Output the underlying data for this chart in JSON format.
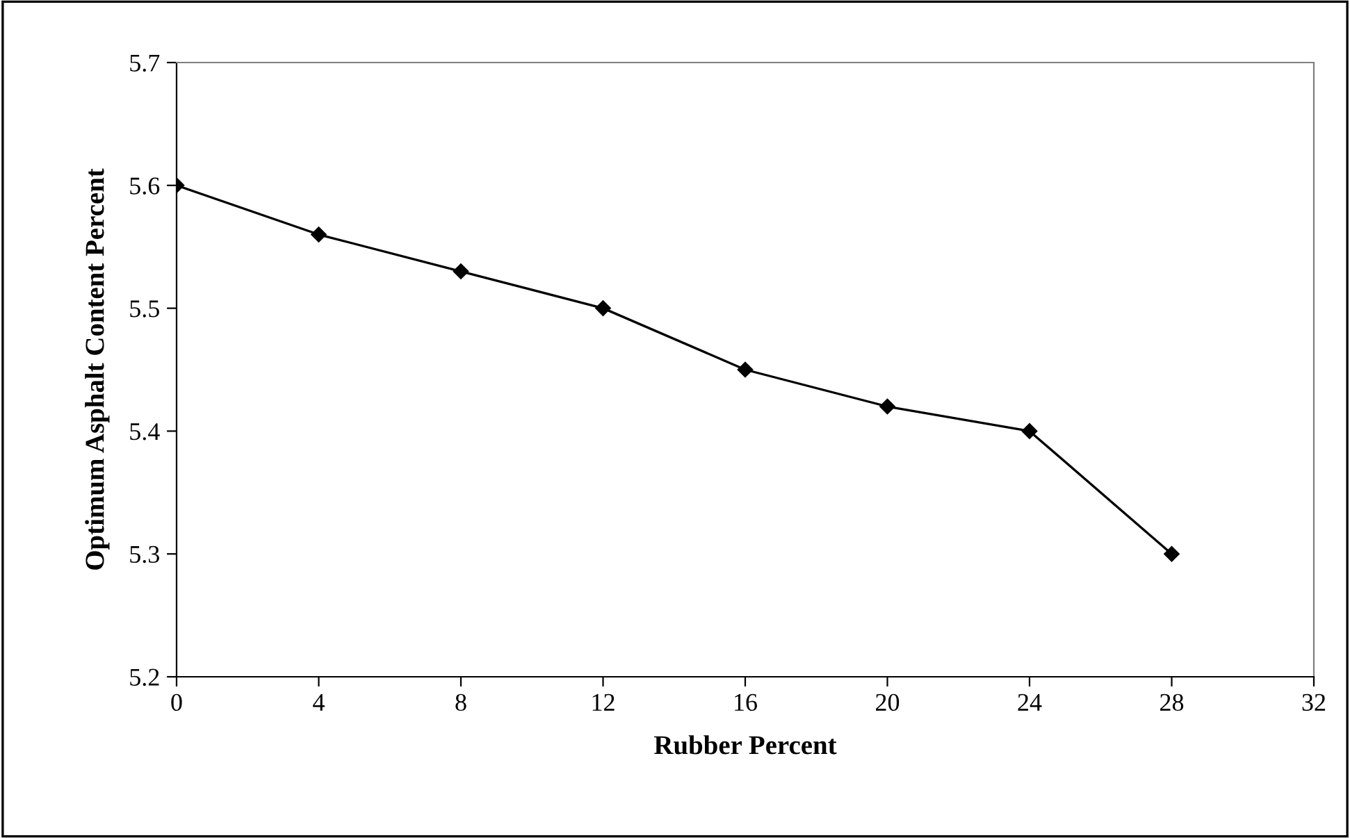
{
  "chart_data": {
    "type": "line",
    "xlabel": "Rubber Percent",
    "ylabel": "Optimum Asphalt Content Percent",
    "x": [
      0,
      4,
      8,
      12,
      16,
      20,
      24,
      28
    ],
    "series": [
      {
        "color": "#000000",
        "values": [
          5.6,
          5.56,
          5.53,
          5.5,
          5.45,
          5.42,
          5.4,
          5.3
        ]
      }
    ],
    "xlim": [
      0,
      32
    ],
    "xticks": [
      0,
      4,
      8,
      12,
      16,
      20,
      24,
      28,
      32
    ],
    "ylim": [
      5.2,
      5.7
    ],
    "yticks": [
      {
        "value": 5.2,
        "label": "5.2"
      },
      {
        "value": 5.3,
        "label": "5.3"
      },
      {
        "value": 5.4,
        "label": "5.4"
      },
      {
        "value": 5.5,
        "label": "5.5"
      },
      {
        "value": 5.6,
        "label": "5.6"
      },
      {
        "value": 5.7,
        "label": "5.7"
      }
    ],
    "marker": "diamond",
    "line_style": "solid",
    "grid": false,
    "legend": false
  }
}
